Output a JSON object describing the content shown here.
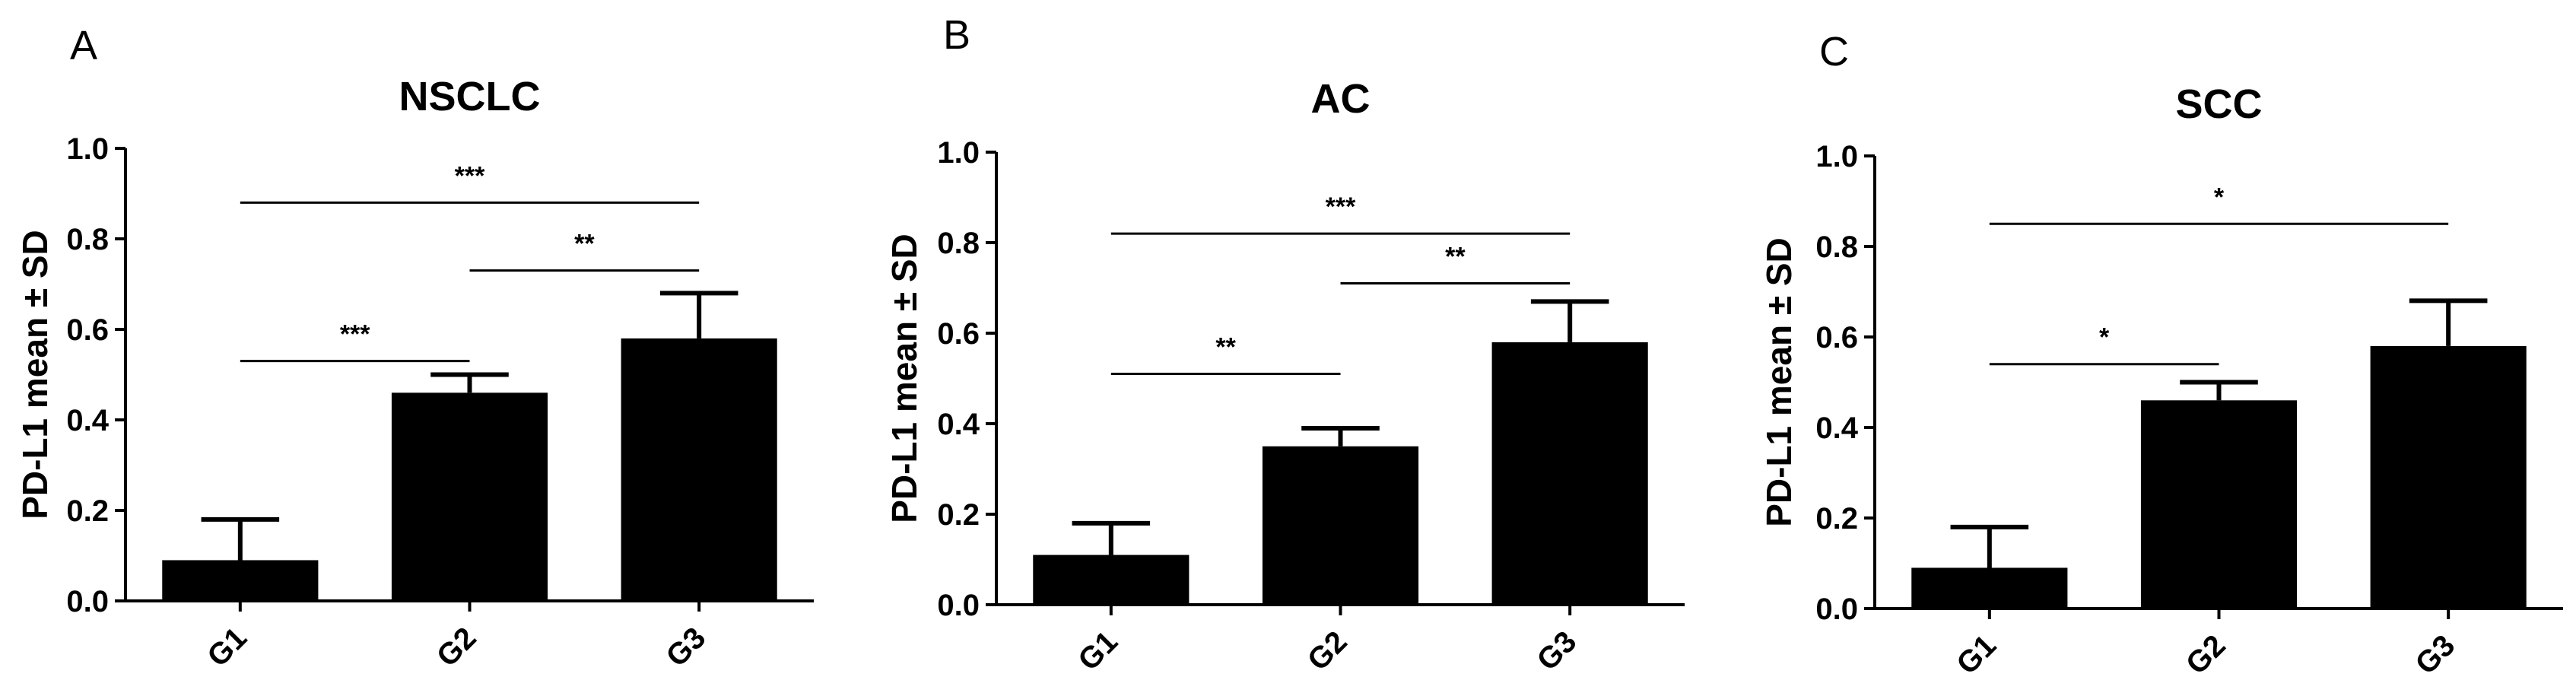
{
  "chart_data": [
    {
      "type": "bar",
      "panel": "A",
      "title": "NSCLC",
      "ylabel": "PD-L1 mean ± SD",
      "xlabel": "",
      "categories": [
        "G1",
        "G2",
        "G3"
      ],
      "values": [
        0.09,
        0.46,
        0.58
      ],
      "errors": [
        0.09,
        0.04,
        0.1
      ],
      "ylim": [
        0,
        1.0
      ],
      "yticks": [
        "0.0",
        "0.2",
        "0.4",
        "0.6",
        "0.8",
        "1.0"
      ],
      "bar_color": "#000000",
      "grid": false,
      "legend": "none",
      "significance": [
        {
          "from": 0,
          "to": 1,
          "y": 0.53,
          "label": "***"
        },
        {
          "from": 1,
          "to": 2,
          "y": 0.73,
          "label": "**"
        },
        {
          "from": 0,
          "to": 2,
          "y": 0.88,
          "label": "***"
        }
      ]
    },
    {
      "type": "bar",
      "panel": "B",
      "title": "AC",
      "ylabel": "PD-L1 mean ± SD",
      "xlabel": "",
      "categories": [
        "G1",
        "G2",
        "G3"
      ],
      "values": [
        0.11,
        0.35,
        0.58
      ],
      "errors": [
        0.07,
        0.04,
        0.09
      ],
      "ylim": [
        0,
        1.0
      ],
      "yticks": [
        "0.0",
        "0.2",
        "0.4",
        "0.6",
        "0.8",
        "1.0"
      ],
      "bar_color": "#000000",
      "grid": false,
      "legend": "none",
      "significance": [
        {
          "from": 0,
          "to": 1,
          "y": 0.51,
          "label": "**"
        },
        {
          "from": 1,
          "to": 2,
          "y": 0.71,
          "label": "**"
        },
        {
          "from": 0,
          "to": 2,
          "y": 0.82,
          "label": "***"
        }
      ]
    },
    {
      "type": "bar",
      "panel": "C",
      "title": "SCC",
      "ylabel": "PD-L1 mean ± SD",
      "xlabel": "",
      "categories": [
        "G1",
        "G2",
        "G3"
      ],
      "values": [
        0.09,
        0.46,
        0.58
      ],
      "errors": [
        0.09,
        0.04,
        0.1
      ],
      "ylim": [
        0,
        1.0
      ],
      "yticks": [
        "0.0",
        "0.2",
        "0.4",
        "0.6",
        "0.8",
        "1.0"
      ],
      "bar_color": "#000000",
      "grid": false,
      "legend": "none",
      "significance": [
        {
          "from": 0,
          "to": 1,
          "y": 0.54,
          "label": "*"
        },
        {
          "from": 0,
          "to": 2,
          "y": 0.85,
          "label": "*"
        }
      ]
    }
  ]
}
